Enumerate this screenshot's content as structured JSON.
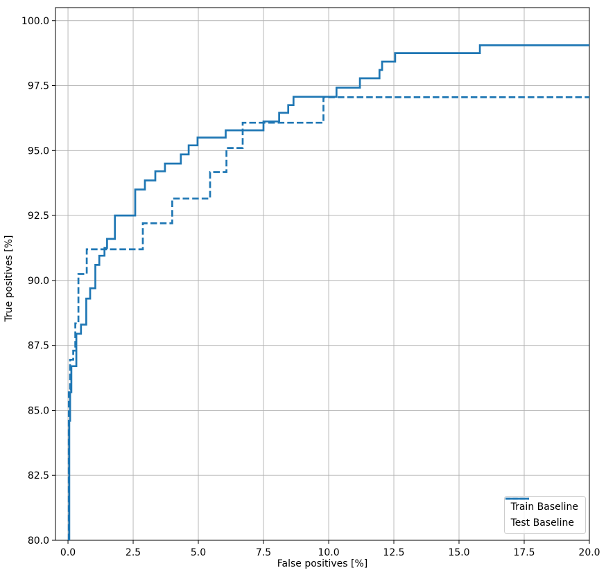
{
  "chart_data": {
    "type": "line",
    "title": "",
    "xlabel": "False positives [%]",
    "ylabel": "True positives [%]",
    "xlim": [
      -0.48,
      20
    ],
    "ylim": [
      80,
      100.5
    ],
    "grid": true,
    "legend_position": "lower right",
    "xticks": {
      "values": [
        0,
        2.5,
        5,
        7.5,
        10,
        12.5,
        15,
        17.5,
        20
      ],
      "labels": [
        "0.0",
        "2.5",
        "5.0",
        "7.5",
        "10.0",
        "12.5",
        "15.0",
        "17.5",
        "20.0"
      ]
    },
    "yticks": {
      "values": [
        80,
        82.5,
        85,
        87.5,
        90,
        92.5,
        95,
        97.5,
        100
      ],
      "labels": [
        "80.0",
        "82.5",
        "85.0",
        "87.5",
        "90.0",
        "92.5",
        "95.0",
        "97.5",
        "100.0"
      ]
    },
    "series": [
      {
        "name": "Train Baseline",
        "style": "solid",
        "color": "#1f77b4",
        "points": [
          [
            0.05,
            80
          ],
          [
            0.05,
            84.6
          ],
          [
            0.08,
            84.6
          ],
          [
            0.08,
            85.7
          ],
          [
            0.13,
            85.7
          ],
          [
            0.13,
            86.7
          ],
          [
            0.32,
            86.7
          ],
          [
            0.32,
            87.95
          ],
          [
            0.5,
            87.95
          ],
          [
            0.5,
            88.3
          ],
          [
            0.7,
            88.3
          ],
          [
            0.7,
            89.3
          ],
          [
            0.85,
            89.3
          ],
          [
            0.85,
            89.7
          ],
          [
            1.05,
            89.7
          ],
          [
            1.05,
            90.6
          ],
          [
            1.2,
            90.6
          ],
          [
            1.2,
            90.95
          ],
          [
            1.4,
            90.95
          ],
          [
            1.4,
            91.25
          ],
          [
            1.5,
            91.25
          ],
          [
            1.5,
            91.6
          ],
          [
            1.8,
            91.6
          ],
          [
            1.8,
            92.5
          ],
          [
            2.58,
            92.5
          ],
          [
            2.58,
            93.5
          ],
          [
            2.95,
            93.5
          ],
          [
            2.95,
            93.85
          ],
          [
            3.35,
            93.85
          ],
          [
            3.35,
            94.2
          ],
          [
            3.72,
            94.2
          ],
          [
            3.72,
            94.5
          ],
          [
            4.33,
            94.5
          ],
          [
            4.33,
            94.85
          ],
          [
            4.63,
            94.85
          ],
          [
            4.63,
            95.2
          ],
          [
            4.97,
            95.2
          ],
          [
            4.97,
            95.5
          ],
          [
            6.05,
            95.5
          ],
          [
            6.05,
            95.78
          ],
          [
            7.5,
            95.78
          ],
          [
            7.5,
            96.12
          ],
          [
            8.1,
            96.12
          ],
          [
            8.1,
            96.45
          ],
          [
            8.45,
            96.45
          ],
          [
            8.45,
            96.75
          ],
          [
            8.65,
            96.75
          ],
          [
            8.65,
            97.07
          ],
          [
            10.3,
            97.07
          ],
          [
            10.3,
            97.42
          ],
          [
            11.2,
            97.42
          ],
          [
            11.2,
            97.78
          ],
          [
            11.95,
            97.78
          ],
          [
            11.95,
            98.1
          ],
          [
            12.05,
            98.1
          ],
          [
            12.05,
            98.42
          ],
          [
            12.55,
            98.42
          ],
          [
            12.55,
            98.75
          ],
          [
            15.8,
            98.75
          ],
          [
            15.8,
            99.05
          ],
          [
            20,
            99.05
          ]
        ]
      },
      {
        "name": "Test Baseline",
        "style": "dashed",
        "color": "#1f77b4",
        "points": [
          [
            0.03,
            80
          ],
          [
            0.03,
            85.8
          ],
          [
            0.08,
            85.8
          ],
          [
            0.08,
            86.95
          ],
          [
            0.2,
            86.95
          ],
          [
            0.2,
            87.3
          ],
          [
            0.28,
            87.3
          ],
          [
            0.28,
            88.35
          ],
          [
            0.4,
            88.35
          ],
          [
            0.4,
            90.25
          ],
          [
            0.72,
            90.25
          ],
          [
            0.72,
            91.2
          ],
          [
            2.87,
            91.2
          ],
          [
            2.87,
            92.2
          ],
          [
            4.0,
            92.2
          ],
          [
            4.0,
            93.15
          ],
          [
            5.45,
            93.15
          ],
          [
            5.45,
            94.17
          ],
          [
            6.08,
            94.17
          ],
          [
            6.08,
            95.1
          ],
          [
            6.7,
            95.1
          ],
          [
            6.7,
            96.07
          ],
          [
            9.8,
            96.07
          ],
          [
            9.8,
            97.05
          ],
          [
            20,
            97.05
          ]
        ]
      }
    ]
  }
}
